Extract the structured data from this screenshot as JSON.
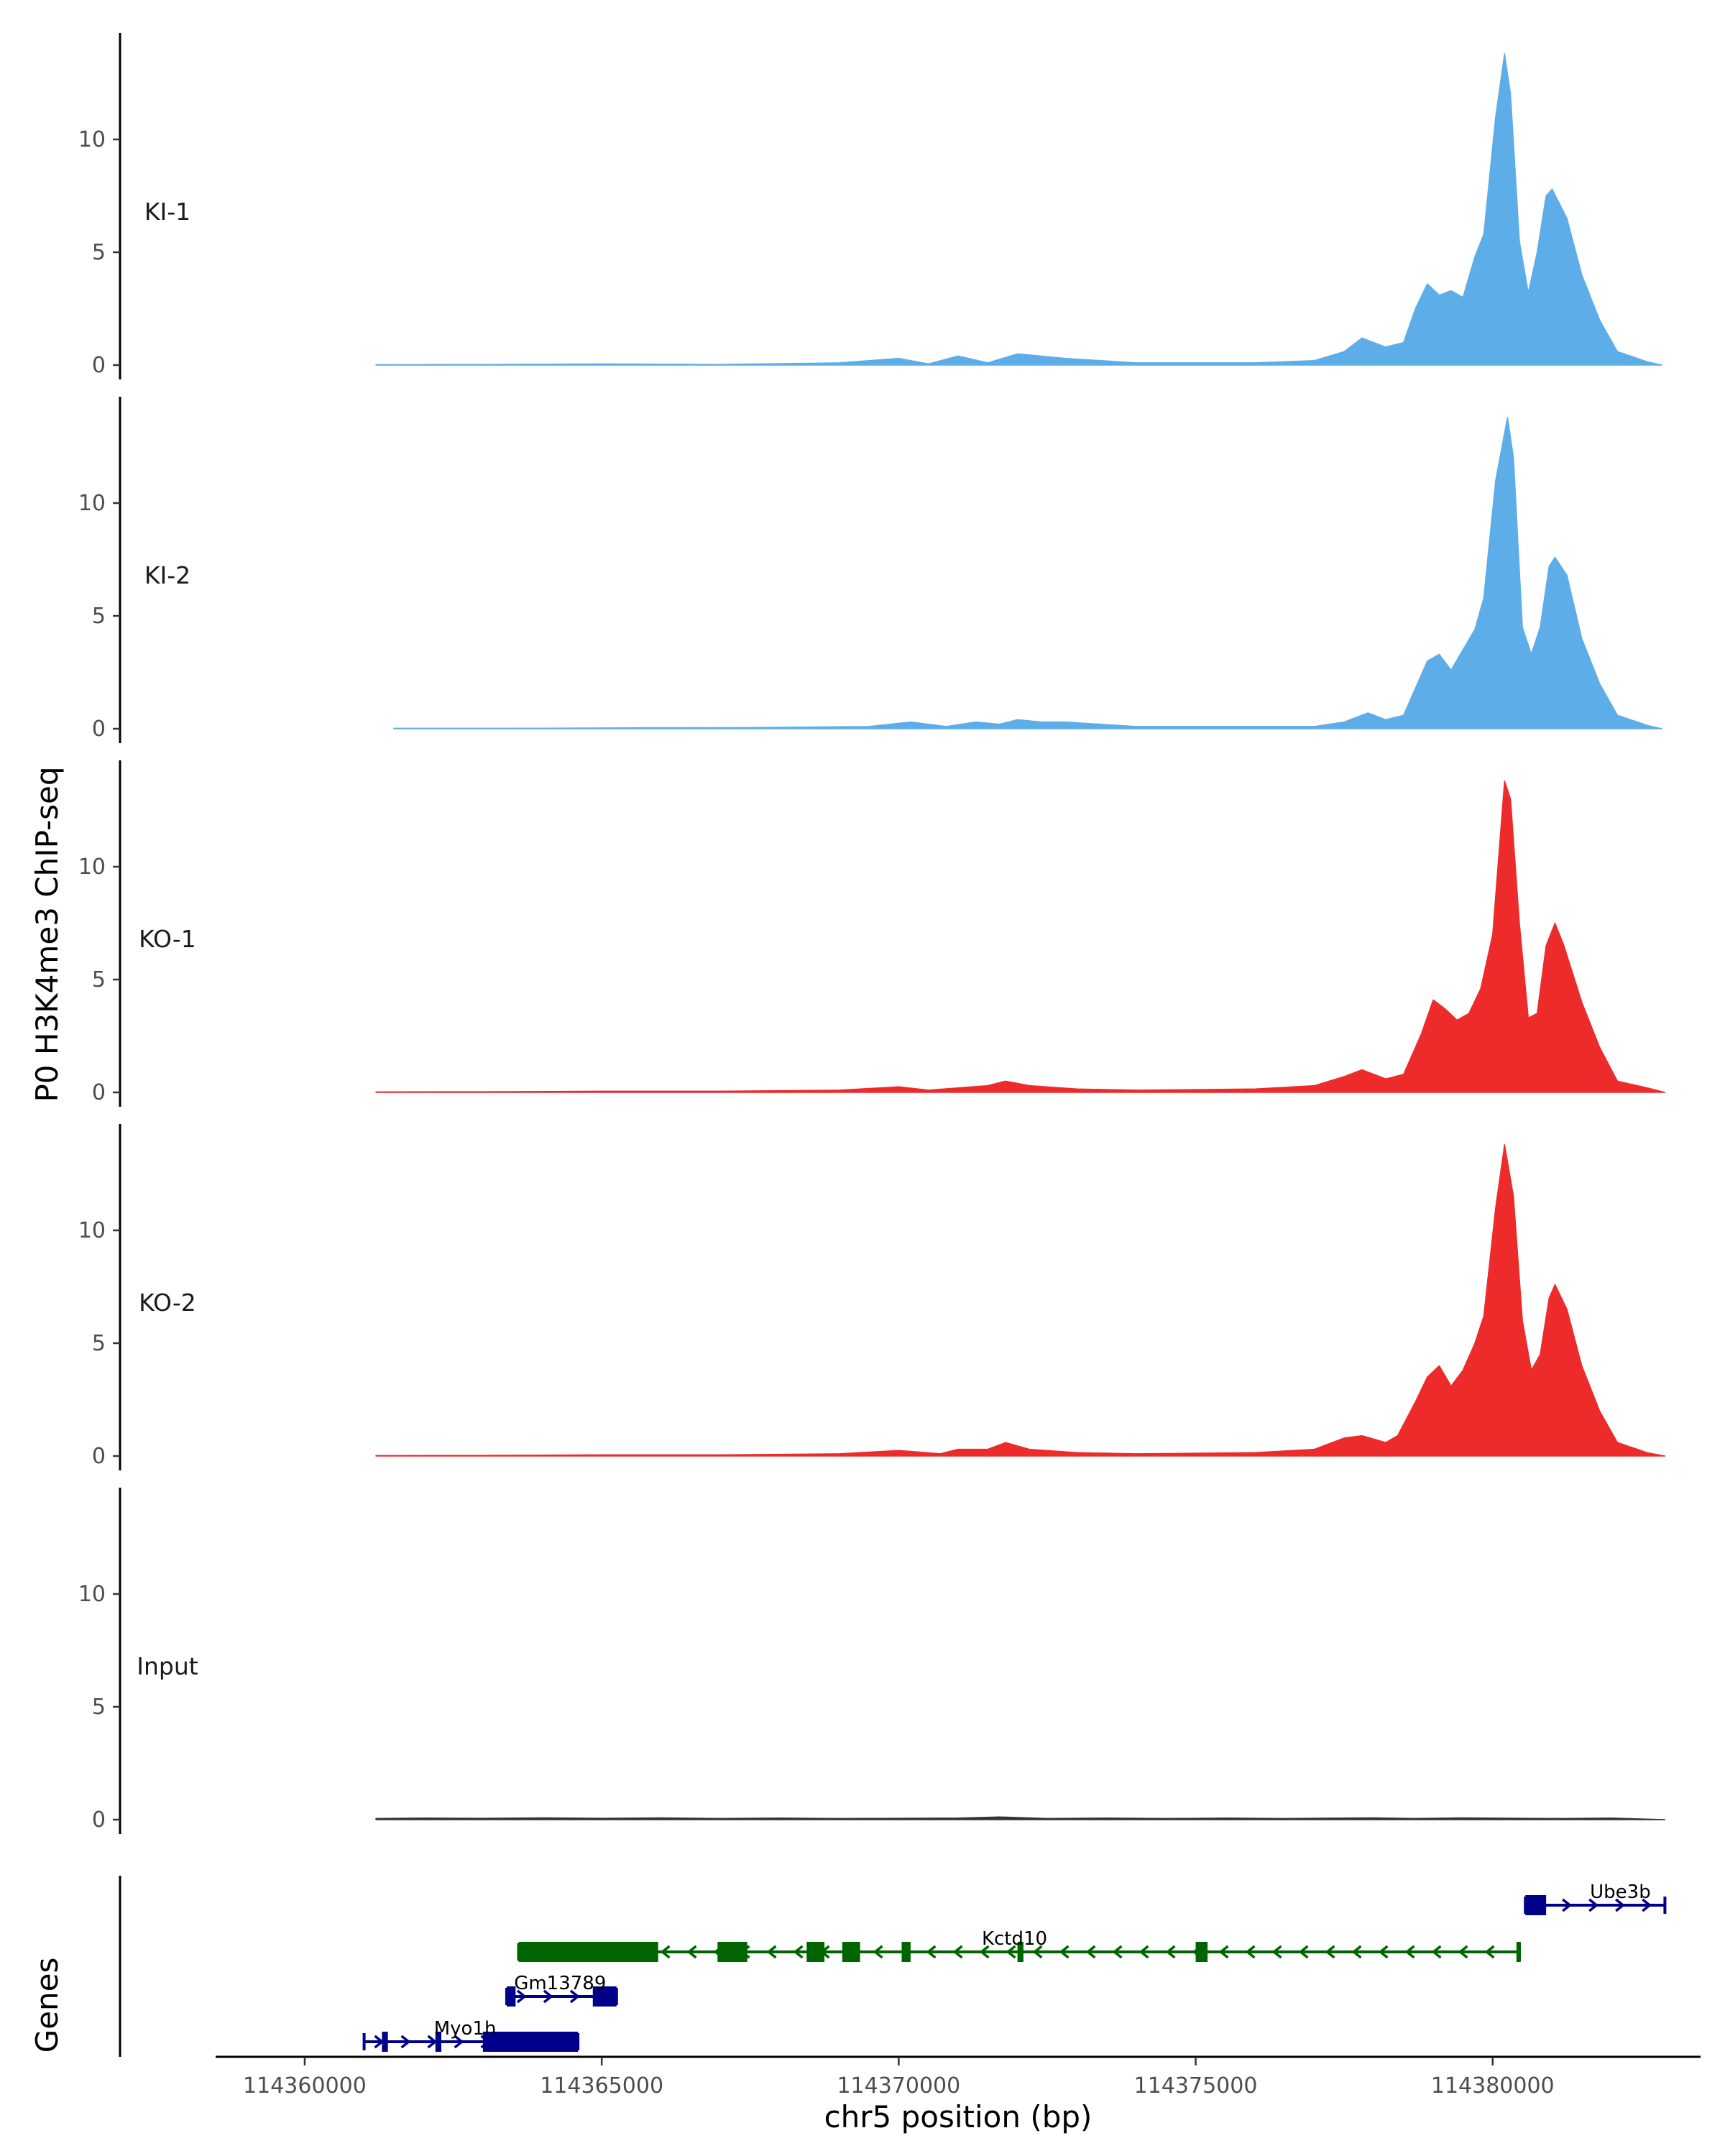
{
  "chart_data": {
    "type": "area",
    "ylabel": "P0 H3K4me3 ChIP-seq",
    "xlabel": "chr5 position (bp)",
    "xlim": [
      114358500,
      114383500
    ],
    "ylim": [
      0,
      14.5
    ],
    "x_ticks": [
      114360000,
      114365000,
      114370000,
      114375000,
      114380000
    ],
    "x_tick_labels": [
      "114360000",
      "114365000",
      "114370000",
      "114375000",
      "114380000"
    ],
    "y_ticks": [
      0,
      5,
      10
    ],
    "y_tick_labels": [
      "0",
      "5",
      "10"
    ],
    "colors": {
      "KI": "#5dade9",
      "KO": "#ee2b2b",
      "Input": "#333333",
      "gene_plus": "#00008b",
      "gene_minus": "#006400"
    },
    "tracks": [
      {
        "name": "KI-1",
        "color": "#5dade9",
        "x": [
          114361200,
          114363000,
          114365000,
          114367000,
          114369000,
          114370000,
          114370500,
          114371000,
          114371500,
          114372000,
          114372800,
          114374000,
          114376000,
          114377000,
          114377500,
          114377800,
          114378200,
          114378500,
          114378700,
          114378900,
          114379100,
          114379300,
          114379500,
          114379700,
          114379850,
          114380050,
          114380200,
          114380300,
          114380450,
          114380600,
          114380750,
          114380900,
          114381000,
          114381250,
          114381500,
          114381800,
          114382100,
          114382600,
          114382850
        ],
        "values": [
          0.02,
          0.03,
          0.05,
          0.03,
          0.1,
          0.3,
          0.05,
          0.4,
          0.1,
          0.5,
          0.3,
          0.1,
          0.1,
          0.2,
          0.6,
          1.2,
          0.8,
          1.0,
          2.5,
          3.6,
          3.1,
          3.3,
          3.0,
          4.8,
          5.8,
          11.0,
          13.8,
          12.0,
          5.5,
          3.2,
          5.0,
          7.5,
          7.8,
          6.5,
          4.0,
          2.0,
          0.6,
          0.15,
          0.0
        ]
      },
      {
        "name": "KI-2",
        "color": "#5dade9",
        "x": [
          114361500,
          114363500,
          114365500,
          114367500,
          114369500,
          114370200,
          114370800,
          114371300,
          114371700,
          114372000,
          114372400,
          114372800,
          114374000,
          114376000,
          114377000,
          114377500,
          114377900,
          114378200,
          114378500,
          114378700,
          114378900,
          114379100,
          114379300,
          114379500,
          114379700,
          114379850,
          114380050,
          114380250,
          114380350,
          114380500,
          114380650,
          114380800,
          114380950,
          114381050,
          114381250,
          114381500,
          114381800,
          114382100,
          114382600,
          114382850
        ],
        "values": [
          0.02,
          0.02,
          0.04,
          0.05,
          0.1,
          0.3,
          0.1,
          0.3,
          0.2,
          0.4,
          0.3,
          0.3,
          0.1,
          0.1,
          0.1,
          0.3,
          0.7,
          0.4,
          0.6,
          1.8,
          3.0,
          3.3,
          2.6,
          3.5,
          4.4,
          5.8,
          11.0,
          13.8,
          12.0,
          4.5,
          3.3,
          4.5,
          7.2,
          7.6,
          6.8,
          4.0,
          2.0,
          0.6,
          0.15,
          0.0
        ]
      },
      {
        "name": "KO-1",
        "color": "#ee2b2b",
        "x": [
          114361200,
          114363000,
          114365000,
          114367000,
          114369000,
          114370000,
          114370500,
          114371000,
          114371500,
          114371800,
          114372200,
          114373000,
          114374000,
          114376000,
          114377000,
          114377500,
          114377800,
          114378200,
          114378500,
          114378800,
          114379000,
          114379200,
          114379400,
          114379600,
          114379800,
          114380000,
          114380200,
          114380300,
          114380450,
          114380600,
          114380750,
          114380900,
          114381050,
          114381200,
          114381500,
          114381800,
          114382100,
          114382600,
          114382900
        ],
        "values": [
          0.02,
          0.03,
          0.05,
          0.05,
          0.1,
          0.25,
          0.1,
          0.2,
          0.3,
          0.5,
          0.3,
          0.15,
          0.1,
          0.15,
          0.3,
          0.7,
          1.0,
          0.6,
          0.8,
          2.6,
          4.1,
          3.7,
          3.2,
          3.5,
          4.6,
          7.0,
          13.8,
          13.0,
          7.5,
          3.3,
          3.5,
          6.5,
          7.5,
          6.5,
          4.0,
          2.0,
          0.5,
          0.2,
          0.0
        ]
      },
      {
        "name": "KO-2",
        "color": "#ee2b2b",
        "x": [
          114361200,
          114363000,
          114365000,
          114367000,
          114369000,
          114370000,
          114370700,
          114371000,
          114371500,
          114371800,
          114372200,
          114373000,
          114374000,
          114376000,
          114377000,
          114377500,
          114377800,
          114378200,
          114378400,
          114378700,
          114378900,
          114379100,
          114379300,
          114379500,
          114379700,
          114379850,
          114380050,
          114380200,
          114380350,
          114380500,
          114380650,
          114380800,
          114380950,
          114381050,
          114381250,
          114381500,
          114381800,
          114382100,
          114382600,
          114382900
        ],
        "values": [
          0.02,
          0.03,
          0.05,
          0.05,
          0.1,
          0.25,
          0.1,
          0.3,
          0.3,
          0.6,
          0.3,
          0.15,
          0.1,
          0.15,
          0.3,
          0.8,
          0.9,
          0.6,
          0.9,
          2.4,
          3.5,
          4.0,
          3.1,
          3.8,
          5.0,
          6.2,
          11.0,
          13.8,
          11.5,
          6.0,
          3.8,
          4.5,
          7.0,
          7.6,
          6.5,
          4.0,
          2.0,
          0.6,
          0.15,
          0.0
        ]
      },
      {
        "name": "Input",
        "color": "#333333",
        "x": [
          114361200,
          114362000,
          114363000,
          114364000,
          114365000,
          114366000,
          114367000,
          114368000,
          114369000,
          114370000,
          114371000,
          114371700,
          114372500,
          114373500,
          114374500,
          114375500,
          114376500,
          114377500,
          114378000,
          114378700,
          114379500,
          114380500,
          114381200,
          114382000,
          114382900
        ],
        "values": [
          0.05,
          0.07,
          0.06,
          0.08,
          0.06,
          0.08,
          0.05,
          0.07,
          0.05,
          0.06,
          0.07,
          0.12,
          0.05,
          0.07,
          0.05,
          0.07,
          0.05,
          0.07,
          0.08,
          0.05,
          0.08,
          0.06,
          0.05,
          0.07,
          0.0
        ]
      }
    ],
    "genes": [
      {
        "name": "Ube3b",
        "strand": "+",
        "color": "#00008b",
        "row": 0,
        "start": 114380550,
        "end": 114382900,
        "exons": [
          [
            114380550,
            114380900
          ]
        ]
      },
      {
        "name": "Kctd10",
        "strand": "-",
        "color": "#006400",
        "row": 1,
        "start": 114363600,
        "end": 114380450,
        "exons": [
          [
            114363600,
            114365950
          ],
          [
            114366950,
            114367450
          ],
          [
            114368450,
            114368750
          ],
          [
            114369050,
            114369350
          ],
          [
            114370050,
            114370200
          ],
          [
            114372000,
            114372100
          ],
          [
            114375000,
            114375200
          ],
          [
            114380400,
            114380450
          ]
        ]
      },
      {
        "name": "Gm13789",
        "strand": "+",
        "color": "#00008b",
        "row": 2,
        "start": 114363400,
        "end": 114365250,
        "exons": [
          [
            114363400,
            114363550
          ],
          [
            114364850,
            114365250
          ]
        ]
      },
      {
        "name": "Myo1h",
        "strand": "+",
        "color": "#00008b",
        "row": 3,
        "start": 114361000,
        "end": 114364600,
        "exons": [
          [
            114361300,
            114361400
          ],
          [
            114362200,
            114362300
          ],
          [
            114363000,
            114364600
          ]
        ]
      }
    ],
    "gene_panel_label": "Genes"
  }
}
